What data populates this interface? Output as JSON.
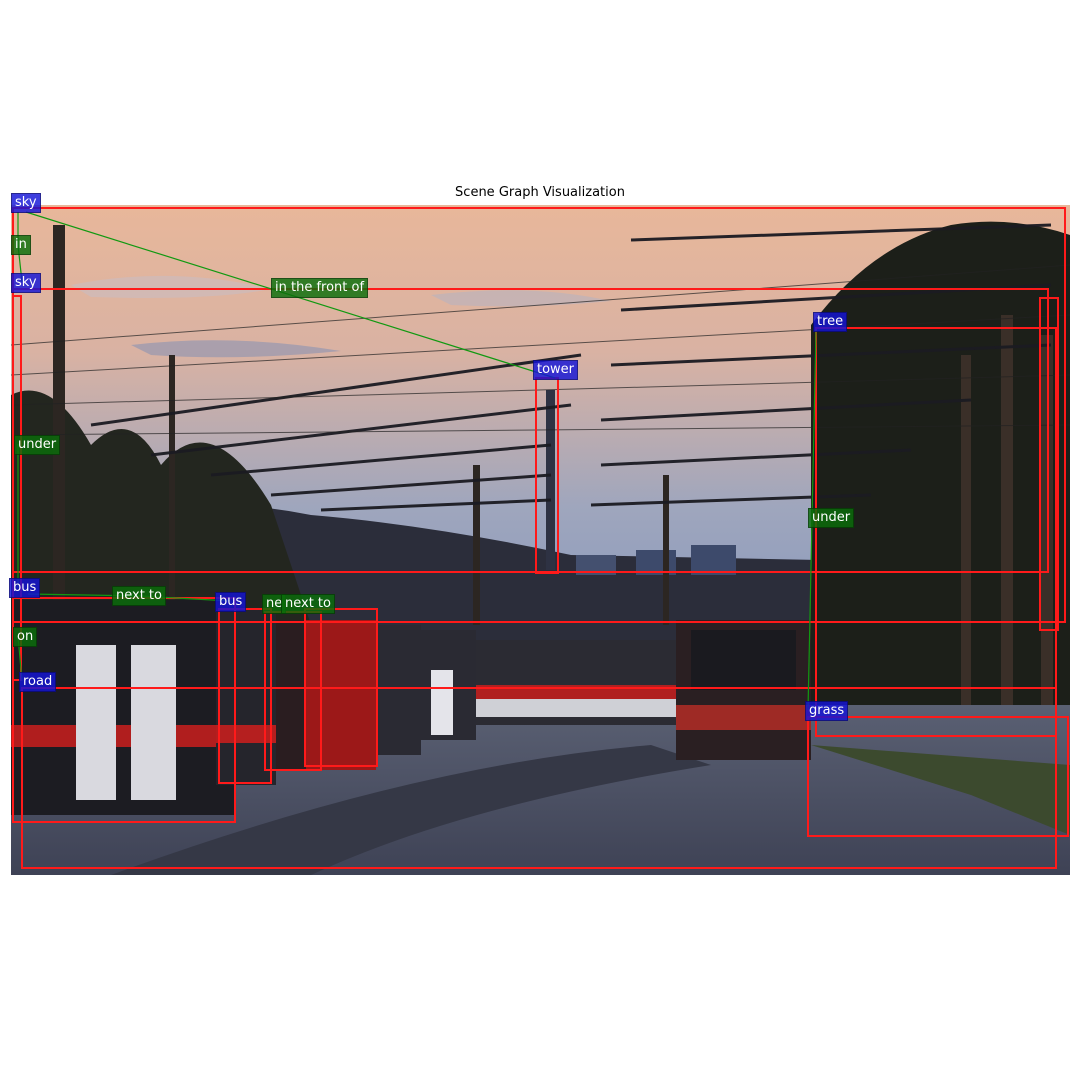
{
  "title": "Scene Graph Visualization",
  "colors": {
    "box": "#ff1a1a",
    "edge": "#119911",
    "object_label_bg": "#1a1ad6",
    "relation_label_bg": "#0b6e0b"
  },
  "objects": [
    "sky",
    "sky",
    "tree",
    "tower",
    "bus",
    "bus",
    "road",
    "grass"
  ],
  "relations": [
    "in",
    "in the front of",
    "under",
    "under",
    "next to",
    "next to",
    "ne",
    "on"
  ],
  "background_description": "dusk photograph of a trolleybus depot with overhead wires and poles"
}
